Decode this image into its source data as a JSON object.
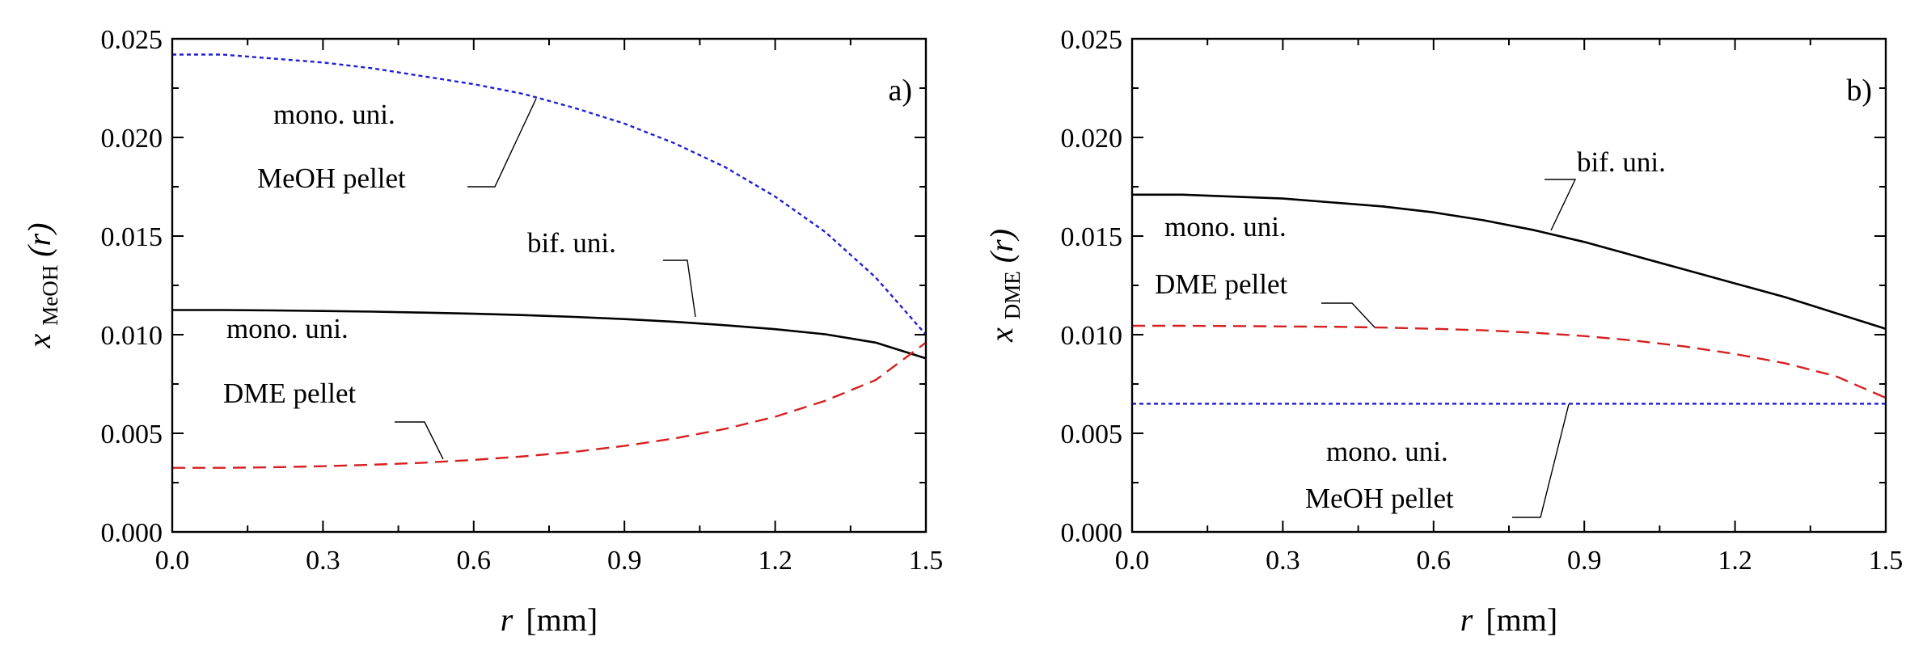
{
  "chart_data": [
    {
      "type": "line",
      "panel_label": "a)",
      "xlabel_var": "r",
      "xlabel_unit": "[mm]",
      "ylabel_var": "x",
      "ylabel_sub": "MeOH",
      "ylabel_arg": "(r)",
      "xlim": [
        0.0,
        1.5
      ],
      "ylim": [
        0.0,
        0.025
      ],
      "x_ticks": [
        "0.0",
        "0.3",
        "0.6",
        "0.9",
        "1.2",
        "1.5"
      ],
      "y_ticks": [
        "0.000",
        "0.005",
        "0.010",
        "0.015",
        "0.020",
        "0.025"
      ],
      "series": [
        {
          "name": "mono. uni. MeOH pellet",
          "color": "#1f1fd6",
          "dash": "dotted",
          "x": [
            0.0,
            0.1,
            0.2,
            0.3,
            0.4,
            0.5,
            0.6,
            0.7,
            0.8,
            0.9,
            1.0,
            1.1,
            1.2,
            1.3,
            1.4,
            1.5
          ],
          "y": [
            0.0242,
            0.0242,
            0.024,
            0.0238,
            0.0235,
            0.0231,
            0.0227,
            0.0222,
            0.0215,
            0.0207,
            0.0197,
            0.0185,
            0.017,
            0.0152,
            0.0129,
            0.01
          ]
        },
        {
          "name": "bif. uni.",
          "color": "#000000",
          "dash": "solid",
          "x": [
            0.0,
            0.1,
            0.2,
            0.3,
            0.4,
            0.5,
            0.6,
            0.7,
            0.8,
            0.9,
            1.0,
            1.1,
            1.2,
            1.3,
            1.4,
            1.5
          ],
          "y": [
            0.01125,
            0.01125,
            0.01123,
            0.0112,
            0.01117,
            0.01112,
            0.01106,
            0.01099,
            0.0109,
            0.01079,
            0.01065,
            0.01048,
            0.01028,
            0.01002,
            0.0096,
            0.0088
          ]
        },
        {
          "name": "mono. uni. DME pellet",
          "color": "#d62020",
          "dash": "dashed",
          "x": [
            0.0,
            0.1,
            0.2,
            0.3,
            0.4,
            0.5,
            0.6,
            0.7,
            0.8,
            0.9,
            1.0,
            1.1,
            1.2,
            1.3,
            1.4,
            1.5
          ],
          "y": [
            0.00325,
            0.00325,
            0.00328,
            0.00333,
            0.00341,
            0.00351,
            0.00365,
            0.00383,
            0.00406,
            0.00436,
            0.00474,
            0.00522,
            0.00584,
            0.00665,
            0.0077,
            0.0096
          ]
        }
      ],
      "annotations": [
        {
          "id": "a-mono-meoh",
          "lines": [
            "mono. uni.",
            "MeOH pellet"
          ]
        },
        {
          "id": "a-bif",
          "lines": [
            "bif. uni."
          ]
        },
        {
          "id": "a-mono-dme",
          "lines": [
            "mono. uni.",
            "DME pellet"
          ]
        }
      ]
    },
    {
      "type": "line",
      "panel_label": "b)",
      "xlabel_var": "r",
      "xlabel_unit": "[mm]",
      "ylabel_var": "x",
      "ylabel_sub": "DME",
      "ylabel_arg": "(r)",
      "xlim": [
        0.0,
        1.5
      ],
      "ylim": [
        0.0,
        0.025
      ],
      "x_ticks": [
        "0.0",
        "0.3",
        "0.6",
        "0.9",
        "1.2",
        "1.5"
      ],
      "y_ticks": [
        "0.000",
        "0.005",
        "0.010",
        "0.015",
        "0.020",
        "0.025"
      ],
      "series": [
        {
          "name": "bif. uni.",
          "color": "#000000",
          "dash": "solid",
          "x": [
            0.0,
            0.1,
            0.2,
            0.3,
            0.4,
            0.5,
            0.6,
            0.7,
            0.8,
            0.9,
            1.0,
            1.1,
            1.2,
            1.3,
            1.4,
            1.5
          ],
          "y": [
            0.0171,
            0.0171,
            0.017,
            0.0169,
            0.0167,
            0.0165,
            0.0162,
            0.0158,
            0.0153,
            0.0147,
            0.014,
            0.0133,
            0.0126,
            0.0119,
            0.0111,
            0.0103
          ]
        },
        {
          "name": "mono. uni. DME pellet",
          "color": "#d62020",
          "dash": "dashed",
          "x": [
            0.0,
            0.1,
            0.2,
            0.3,
            0.4,
            0.5,
            0.6,
            0.7,
            0.8,
            0.9,
            1.0,
            1.1,
            1.2,
            1.3,
            1.4,
            1.5
          ],
          "y": [
            0.01045,
            0.01045,
            0.01044,
            0.01042,
            0.0104,
            0.01036,
            0.0103,
            0.01022,
            0.0101,
            0.00993,
            0.0097,
            0.0094,
            0.00902,
            0.00855,
            0.0079,
            0.0068
          ]
        },
        {
          "name": "mono. uni. MeOH pellet",
          "color": "#1f1fd6",
          "dash": "dotted",
          "x": [
            0.0,
            1.5
          ],
          "y": [
            0.0065,
            0.0065
          ]
        }
      ],
      "annotations": [
        {
          "id": "b-bif",
          "lines": [
            "bif. uni."
          ]
        },
        {
          "id": "b-mono-dme",
          "lines": [
            "mono. uni.",
            "DME pellet"
          ]
        },
        {
          "id": "b-mono-meoh",
          "lines": [
            "mono. uni.",
            "MeOH pellet"
          ]
        }
      ]
    }
  ]
}
